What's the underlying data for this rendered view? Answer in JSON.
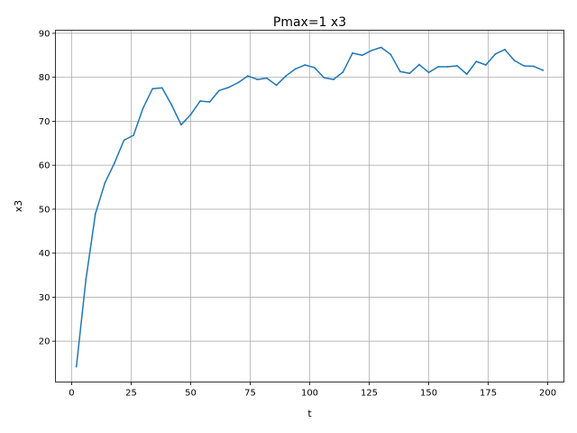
{
  "chart_data": {
    "type": "line",
    "title": "Pmax=1 x3",
    "xlabel": "t",
    "ylabel": "x3",
    "xlim": [
      -6.8,
      206.8
    ],
    "ylim": [
      10.7,
      90.7
    ],
    "xticks": [
      0,
      25,
      50,
      75,
      100,
      125,
      150,
      175,
      200
    ],
    "yticks": [
      20,
      30,
      40,
      50,
      60,
      70,
      80,
      90
    ],
    "xtick_labels": [
      "0",
      "25",
      "50",
      "75",
      "100",
      "125",
      "150",
      "175",
      "200"
    ],
    "ytick_labels": [
      "20",
      "30",
      "40",
      "50",
      "60",
      "70",
      "80",
      "90"
    ],
    "grid": true,
    "colors": {
      "series": "#1f77b4"
    },
    "series": [
      {
        "x": [
          2,
          6,
          10,
          14,
          18,
          22,
          26,
          30,
          34,
          38,
          42,
          46,
          50,
          54,
          58,
          62,
          66,
          70,
          74,
          78,
          82,
          86,
          90,
          94,
          98,
          102,
          106,
          110,
          114,
          118,
          122,
          126,
          130,
          134,
          138,
          142,
          146,
          150,
          154,
          158,
          162,
          166,
          170,
          174,
          178,
          182,
          186,
          190,
          194,
          198
        ],
        "values": [
          14.2,
          34,
          49,
          56,
          60.5,
          65.7,
          66.8,
          73,
          77.4,
          77.6,
          73.7,
          69.2,
          71.5,
          74.6,
          74.4,
          77,
          77.7,
          78.8,
          80.3,
          79.5,
          79.8,
          78.2,
          80.3,
          81.9,
          82.8,
          82.2,
          79.9,
          79.5,
          81.2,
          85.5,
          85,
          86.1,
          86.8,
          85.2,
          81.3,
          80.9,
          82.9,
          81.1,
          82.4,
          82.4,
          82.6,
          80.7,
          83.6,
          82.8,
          85.3,
          86.3,
          83.8,
          82.6,
          82.5,
          81.6
        ]
      }
    ]
  }
}
